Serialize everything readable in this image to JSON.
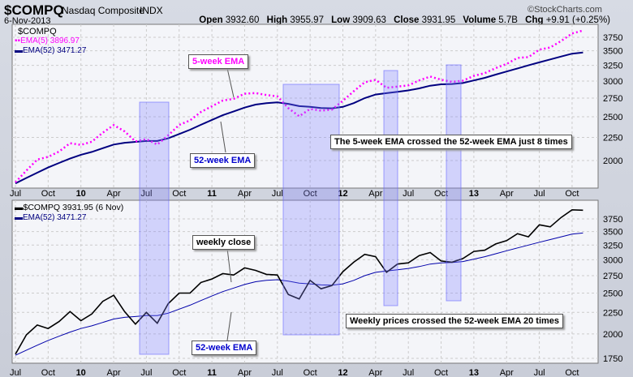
{
  "header": {
    "symbol": "$COMPQ",
    "name": "Nasdaq Composite",
    "exchange": "INDX",
    "date": "6-Nov-2013",
    "watermark": "©StockCharts.com",
    "quote": [
      {
        "k": "Open",
        "v": "3932.60"
      },
      {
        "k": "High",
        "v": "3955.97"
      },
      {
        "k": "Low",
        "v": "3909.63"
      },
      {
        "k": "Close",
        "v": "3931.95"
      },
      {
        "k": "Volume",
        "v": "5.7B"
      },
      {
        "k": "Chg",
        "v": "+9.91 (+0.25%)"
      }
    ]
  },
  "colors": {
    "ema5": "#ff00ff",
    "ema52": "#000080",
    "close": "#000000",
    "ema52_bottom": "#0000aa",
    "shade": "#8080ff"
  },
  "chart_data": [
    {
      "type": "line",
      "title": "$COMPQ",
      "yscale": "log",
      "ylim": [
        1900,
        3900
      ],
      "yticks": [
        2000,
        2250,
        2500,
        2750,
        3000,
        3250,
        3500,
        3750
      ],
      "legend": [
        "EMA(5) 3896.97",
        "EMA(52) 3471.27"
      ],
      "annotations": {
        "ema5": "5-week EMA",
        "ema52": "52-week EMA",
        "note": "The 5-week EMA crossed the 52-week EMA just 8 times"
      }
    },
    {
      "type": "line",
      "yscale": "log",
      "ylim": [
        1700,
        4000
      ],
      "yticks": [
        1750,
        2000,
        2250,
        2500,
        2750,
        3000,
        3250,
        3500,
        3750
      ],
      "legend": [
        "$COMPQ 3931.95 (6 Nov)",
        "EMA(52) 3471.27"
      ],
      "annotations": {
        "close": "weekly close",
        "ema52": "52-week EMA",
        "note": "Weekly prices crossed the 52-week EMA 20 times"
      }
    }
  ],
  "series": {
    "x_start": "Jul 2009",
    "x_step": "month",
    "close": [
      1790,
      1990,
      2100,
      2060,
      2140,
      2260,
      2150,
      2230,
      2390,
      2470,
      2260,
      2110,
      2250,
      2120,
      2360,
      2500,
      2500,
      2650,
      2700,
      2780,
      2760,
      2870,
      2830,
      2770,
      2760,
      2480,
      2420,
      2680,
      2560,
      2605,
      2810,
      2960,
      3090,
      3050,
      2800,
      2930,
      2950,
      3070,
      3120,
      2980,
      2960,
      3020,
      3140,
      3160,
      3270,
      3330,
      3460,
      3400,
      3630,
      3590,
      3780,
      3940,
      3932
    ],
    "ema52": [
      1780,
      1830,
      1880,
      1930,
      1975,
      2020,
      2060,
      2090,
      2130,
      2170,
      2190,
      2200,
      2210,
      2210,
      2240,
      2290,
      2340,
      2400,
      2460,
      2520,
      2570,
      2620,
      2660,
      2680,
      2690,
      2670,
      2640,
      2630,
      2615,
      2610,
      2630,
      2680,
      2750,
      2800,
      2820,
      2840,
      2860,
      2890,
      2930,
      2950,
      2955,
      2970,
      3010,
      3050,
      3100,
      3150,
      3200,
      3250,
      3300,
      3350,
      3400,
      3450,
      3471
    ]
  },
  "xaxis": [
    "Jul",
    "Oct",
    "10",
    "Apr",
    "Jul",
    "Oct",
    "11",
    "Apr",
    "Jul",
    "Oct",
    "12",
    "Apr",
    "Jul",
    "Oct",
    "13",
    "Apr",
    "Jul",
    "Oct"
  ]
}
